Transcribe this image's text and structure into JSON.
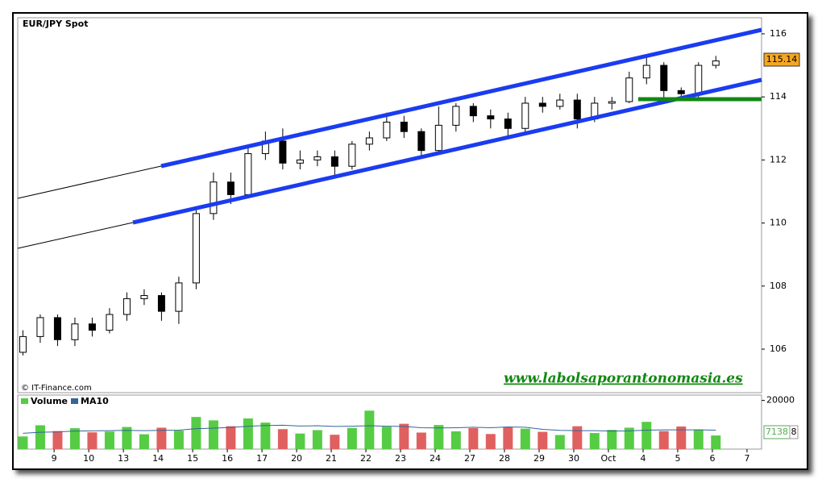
{
  "chart_data": {
    "type": "candlestick",
    "title": "EUR/JPY Spot",
    "source": "© IT-Finance.com",
    "watermark": "www.labolsaporantonomasia.es",
    "x": [
      -0.9,
      -0.4,
      0.1,
      0.6,
      1.1,
      1.6,
      2.1,
      2.6,
      3.1,
      3.6,
      4.1,
      4.6,
      5.1,
      5.6,
      6.1,
      6.6,
      7.1,
      7.6,
      8.1,
      8.6,
      9.1,
      9.6,
      10.1,
      10.6,
      11.1,
      11.6,
      12.1,
      12.6,
      13.1,
      13.6,
      14.1,
      14.6,
      15.1,
      15.6,
      16.1,
      16.6,
      17.1,
      17.6,
      18.1,
      18.6,
      19.1
    ],
    "open": [
      105.9,
      106.4,
      107.0,
      106.3,
      106.8,
      106.6,
      107.1,
      107.6,
      107.7,
      107.2,
      108.1,
      110.3,
      111.3,
      110.9,
      112.2,
      112.6,
      111.9,
      112.0,
      112.1,
      111.8,
      112.5,
      112.7,
      113.2,
      112.9,
      112.3,
      113.1,
      113.7,
      113.4,
      113.3,
      113.0,
      113.8,
      113.7,
      113.9,
      113.3,
      113.8,
      113.85,
      114.6,
      115.0,
      114.2,
      114.1,
      115.0
    ],
    "high": [
      106.6,
      107.1,
      107.1,
      107.0,
      107.0,
      107.3,
      107.8,
      107.9,
      107.8,
      108.3,
      110.5,
      111.6,
      111.6,
      112.4,
      112.9,
      113.0,
      112.3,
      112.3,
      112.3,
      112.6,
      112.9,
      113.5,
      113.4,
      113.0,
      113.7,
      113.8,
      113.8,
      113.6,
      113.5,
      114.0,
      114.0,
      114.1,
      114.1,
      114.0,
      114.0,
      114.8,
      115.3,
      115.1,
      114.3,
      115.1,
      115.3
    ],
    "low": [
      105.8,
      106.2,
      106.1,
      106.1,
      106.4,
      106.5,
      106.9,
      107.4,
      106.9,
      106.8,
      107.9,
      110.1,
      110.6,
      110.8,
      112.0,
      111.7,
      111.7,
      111.8,
      111.5,
      111.7,
      112.3,
      112.6,
      112.7,
      112.1,
      112.2,
      112.9,
      113.2,
      113.0,
      112.7,
      112.8,
      113.5,
      113.6,
      113.0,
      113.2,
      113.6,
      113.8,
      114.4,
      113.9,
      113.9,
      113.9,
      114.9
    ],
    "close": [
      106.4,
      107.0,
      106.3,
      106.8,
      106.6,
      107.1,
      107.6,
      107.7,
      107.2,
      108.1,
      110.3,
      111.3,
      110.9,
      112.2,
      112.6,
      111.9,
      112.0,
      112.1,
      111.8,
      112.5,
      112.7,
      113.2,
      112.9,
      112.3,
      113.1,
      113.7,
      113.4,
      113.3,
      113.0,
      113.8,
      113.7,
      113.9,
      113.3,
      113.8,
      113.85,
      114.6,
      115.0,
      114.2,
      114.1,
      115.0,
      115.14
    ],
    "xlim": [
      -1.05,
      20.42
    ],
    "xticks": [
      {
        "value": 0,
        "label": "9"
      },
      {
        "value": 1,
        "label": "10"
      },
      {
        "value": 2,
        "label": "13"
      },
      {
        "value": 3,
        "label": "14"
      },
      {
        "value": 4,
        "label": "15"
      },
      {
        "value": 5,
        "label": "16"
      },
      {
        "value": 6,
        "label": "17"
      },
      {
        "value": 7,
        "label": "20"
      },
      {
        "value": 8,
        "label": "21"
      },
      {
        "value": 9,
        "label": "22"
      },
      {
        "value": 10,
        "label": "23"
      },
      {
        "value": 11,
        "label": "24"
      },
      {
        "value": 12,
        "label": "27"
      },
      {
        "value": 13,
        "label": "28"
      },
      {
        "value": 14,
        "label": "29"
      },
      {
        "value": 15,
        "label": "30"
      },
      {
        "value": 16,
        "label": "Oct"
      },
      {
        "value": 17,
        "label": "4"
      },
      {
        "value": 18,
        "label": "5"
      },
      {
        "value": 19,
        "label": "6"
      },
      {
        "value": 20,
        "label": "7"
      }
    ],
    "ylim": [
      104.62,
      116.51
    ],
    "yticks": [
      106,
      108,
      110,
      112,
      114,
      116
    ],
    "last_price": 115.14,
    "up_color": "#ffffff",
    "down_color": "#000000",
    "volume": {
      "series": [
        {
          "name": "Volume",
          "color": "#55cc44",
          "down_color": "#e06060",
          "values": [
            5200,
            9800,
            7400,
            8600,
            6900,
            7200,
            9100,
            6100,
            8800,
            7600,
            13200,
            11800,
            9400,
            12600,
            10900,
            8200,
            6400,
            7800,
            5900,
            8700,
            15800,
            9200,
            10400,
            6800,
            9900,
            7300,
            8600,
            6200,
            9100,
            8400,
            7100,
            5800,
            9400,
            6600,
            7900,
            8800,
            11200,
            7400,
            9300,
            8100,
            5600
          ]
        },
        {
          "name": "MA10",
          "color": "#336699",
          "values": [
            6500,
            6900,
            7100,
            7400,
            7500,
            7600,
            7700,
            7600,
            7700,
            7800,
            8400,
            8600,
            8900,
            9400,
            9700,
            9800,
            9500,
            9600,
            9300,
            9400,
            9600,
            9400,
            9300,
            8800,
            8700,
            8800,
            9000,
            8800,
            9100,
            9000,
            8100,
            7700,
            7600,
            7600,
            7400,
            7500,
            7800,
            7900,
            7900,
            7900,
            7800
          ]
        }
      ],
      "ylim": [
        0,
        22200
      ],
      "yticks": [
        20000
      ],
      "last_label": 7138,
      "extra_label": "8"
    }
  }
}
